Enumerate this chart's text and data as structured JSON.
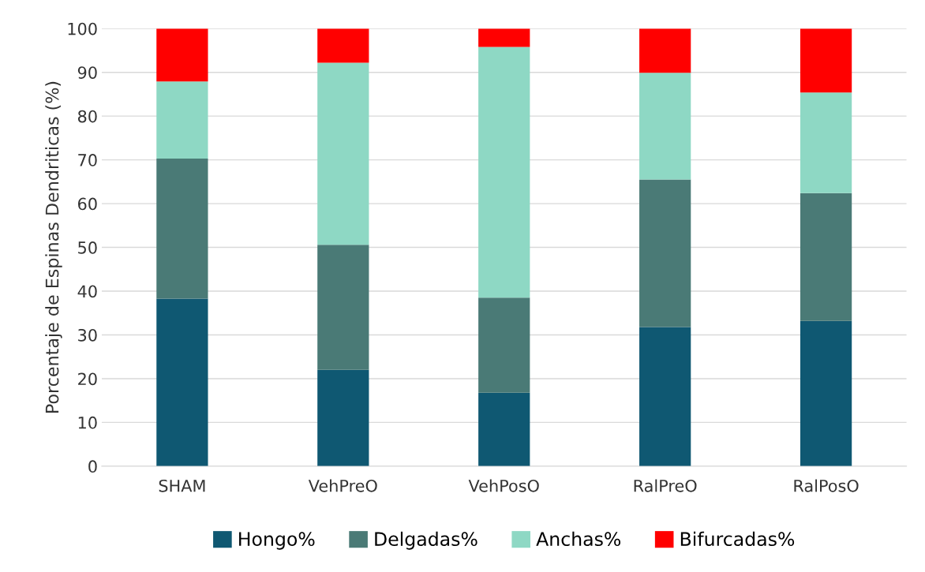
{
  "chart_data": {
    "type": "bar",
    "stacked": true,
    "ylabel": "Porcentaje de Espinas Dendriticas (%)",
    "categories": [
      "SHAM",
      "VehPreO",
      "VehPosO",
      "RalPreO",
      "RalPosO"
    ],
    "series": [
      {
        "name": "Hongo%",
        "color": "#0f5872",
        "values": [
          38.3,
          22.0,
          16.8,
          31.8,
          33.2
        ]
      },
      {
        "name": "Delgadas%",
        "color": "#4a7a76",
        "values": [
          32.0,
          28.6,
          21.7,
          33.7,
          29.2
        ]
      },
      {
        "name": "Anchas%",
        "color": "#8ed8c4",
        "values": [
          17.6,
          41.6,
          57.3,
          24.4,
          23.0
        ]
      },
      {
        "name": "Bifurcadas%",
        "color": "#ff0000",
        "values": [
          12.1,
          7.8,
          4.2,
          10.1,
          14.6
        ]
      }
    ],
    "ylim": [
      0,
      100
    ],
    "yticks": [
      0,
      10,
      20,
      30,
      40,
      50,
      60,
      70,
      80,
      90,
      100
    ],
    "grid": "y",
    "legend": "bottom"
  }
}
